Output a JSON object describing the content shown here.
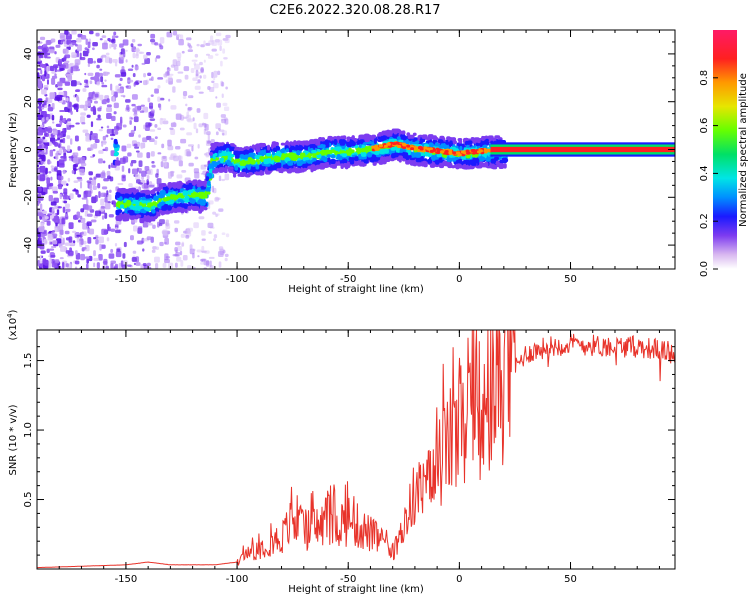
{
  "figure": {
    "title": "C2E6.2022.320.08.28.R17"
  },
  "chart_data": [
    {
      "type": "heatmap",
      "xlabel": "Height of straight line (km)",
      "ylabel": "Frequency (Hz)",
      "xlim": [
        -190,
        97
      ],
      "ylim": [
        -50,
        50
      ],
      "xticks": [
        -150,
        -100,
        -50,
        0,
        50
      ],
      "yticks": [
        -40,
        -20,
        0,
        20,
        40
      ],
      "colorbar": {
        "label": "Normalized spectral amplitude",
        "range": [
          0.0,
          1.0
        ],
        "ticks": [
          0.0,
          0.2,
          0.4,
          0.6,
          0.8
        ],
        "colors": [
          "#ffffff",
          "#d9b8f0",
          "#7d3cf0",
          "#1a1aff",
          "#0090ff",
          "#00e5e5",
          "#00e066",
          "#66ff00",
          "#e6e600",
          "#ff9900",
          "#ff2020",
          "#ff1a66"
        ]
      },
      "ridge": {
        "x": [
          -155,
          -148,
          -140,
          -135,
          -128,
          -120,
          -115,
          -112,
          -105,
          -100,
          -90,
          -80,
          -70,
          -60,
          -50,
          -40,
          -30,
          -25,
          -20,
          -10,
          0,
          10,
          20,
          30,
          50,
          70,
          97
        ],
        "y": [
          -22,
          -22,
          -23,
          -20,
          -19,
          -18,
          -19,
          -3,
          -2,
          -5,
          -3,
          -2,
          -2,
          0,
          0,
          1,
          3,
          2,
          1,
          0,
          -1,
          0,
          0,
          0,
          0,
          0,
          0
        ]
      }
    },
    {
      "type": "line",
      "xlabel": "Height of straight line (km)",
      "ylabel": "SNR (10 * v/v)",
      "yscale_label": "(x10",
      "yscale_exp": "4",
      "yscale_close": ")",
      "xlim": [
        -190,
        97
      ],
      "ylim": [
        0.0,
        1.72
      ],
      "xticks": [
        -150,
        -100,
        -50,
        0,
        50
      ],
      "yticks": [
        0.5,
        1.0,
        1.5
      ],
      "color": "#e8332a",
      "series": [
        {
          "x": [
            -190,
            -170,
            -150,
            -140,
            -130,
            -120,
            -110,
            -100,
            -95,
            -90,
            -85,
            -80,
            -75,
            -70,
            -65,
            -60,
            -55,
            -50,
            -45,
            -40,
            -35,
            -30,
            -25,
            -20,
            -15,
            -10,
            -5,
            0,
            5,
            10,
            15,
            20,
            25,
            30,
            40,
            50,
            60,
            70,
            80,
            90,
            97
          ],
          "y": [
            0.01,
            0.02,
            0.03,
            0.05,
            0.03,
            0.03,
            0.03,
            0.05,
            0.12,
            0.15,
            0.2,
            0.22,
            0.35,
            0.28,
            0.3,
            0.32,
            0.33,
            0.35,
            0.3,
            0.25,
            0.2,
            0.1,
            0.3,
            0.55,
            0.55,
            0.7,
            0.9,
            0.95,
            1.05,
            1.0,
            1.2,
            1.35,
            1.45,
            1.55,
            1.6,
            1.62,
            1.61,
            1.6,
            1.6,
            1.58,
            1.55
          ]
        }
      ]
    }
  ]
}
